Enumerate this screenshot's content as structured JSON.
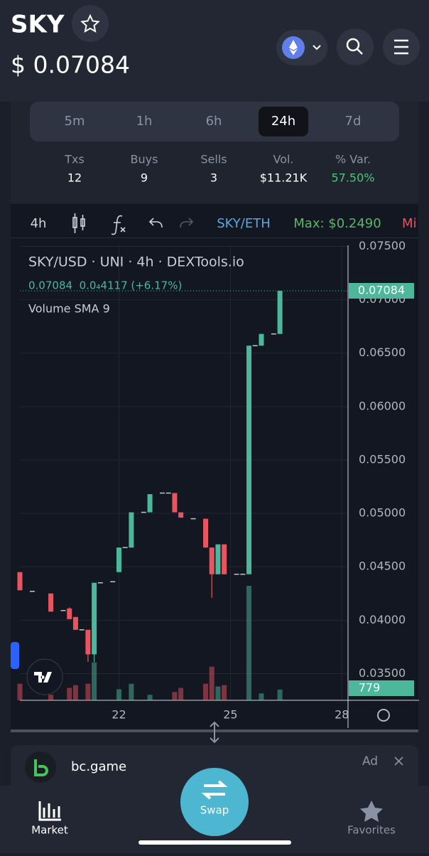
{
  "header": {
    "title": "SKY",
    "price": "$ 0.07084"
  },
  "timeframes": {
    "options": [
      "5m",
      "1h",
      "6h",
      "24h",
      "7d"
    ],
    "active": "24h"
  },
  "stats": [
    {
      "label": "Txs",
      "value": 12
    },
    {
      "label": "Buys",
      "value": 9
    },
    {
      "label": "Sells",
      "value": 3
    },
    {
      "label": "Vol.",
      "value": "$11.21K"
    },
    {
      "label": "% Var.",
      "value": "57.50%"
    }
  ],
  "toolbar": {
    "interval": "4h",
    "pair": "SKY/ETH",
    "max": "Max: $0.2490",
    "min": "Mi"
  },
  "chart_data": {
    "type": "candlestick",
    "title": "SKY/USD · UNI · 4h · DEXTools.io",
    "summary": "0.07084  0.0₄4117 (+6.17%)",
    "indicator": "Volume SMA 9",
    "x": [
      0,
      2,
      5,
      7,
      8,
      9,
      10,
      11,
      12,
      13,
      15,
      16,
      17,
      18,
      20,
      21,
      23,
      24,
      25,
      26,
      28,
      30,
      31,
      32,
      33,
      35,
      36,
      37,
      38,
      39,
      41,
      42
    ],
    "open": [
      0.0445,
      0.0427,
      0.0425,
      0.0409,
      0.0411,
      0.0403,
      0.0391,
      0.0391,
      0.0368,
      0.0435,
      0.0436,
      0.0445,
      0.0468,
      0.0468,
      0.0501,
      0.0501,
      0.0519,
      0.0519,
      0.0519,
      0.0501,
      0.0495,
      0.0495,
      0.0468,
      0.0443,
      0.0471,
      0.0443,
      0.0443,
      0.0443,
      0.0657,
      0.0657,
      0.0668,
      0.0668
    ],
    "high": [
      0.0445,
      0.0427,
      0.0425,
      0.0409,
      0.0412,
      0.0403,
      0.0391,
      0.0391,
      0.0435,
      0.0435,
      0.0436,
      0.0468,
      0.0468,
      0.0501,
      0.0501,
      0.0518,
      0.0519,
      0.0519,
      0.0519,
      0.0501,
      0.0495,
      0.0495,
      0.0468,
      0.0471,
      0.0471,
      0.0443,
      0.0443,
      0.0657,
      0.0657,
      0.0668,
      0.0668,
      0.07084
    ],
    "low": [
      0.0428,
      0.0427,
      0.0408,
      0.0409,
      0.0401,
      0.0391,
      0.0391,
      0.0361,
      0.0361,
      0.0435,
      0.0436,
      0.0445,
      0.0468,
      0.0468,
      0.0501,
      0.0501,
      0.0519,
      0.0519,
      0.0501,
      0.0496,
      0.0495,
      0.0468,
      0.0421,
      0.0443,
      0.0443,
      0.0443,
      0.0443,
      0.0443,
      0.0657,
      0.0657,
      0.0668,
      0.0668
    ],
    "close": [
      0.0428,
      0.0427,
      0.0408,
      0.0409,
      0.0401,
      0.0391,
      0.0391,
      0.0368,
      0.0435,
      0.0435,
      0.0436,
      0.0468,
      0.0468,
      0.0501,
      0.0501,
      0.0518,
      0.0519,
      0.0519,
      0.0501,
      0.0496,
      0.0495,
      0.0468,
      0.0443,
      0.0471,
      0.0443,
      0.0443,
      0.0443,
      0.0657,
      0.0657,
      0.0668,
      0.0668,
      0.07084
    ],
    "volume": [
      1200,
      0,
      400,
      0,
      900,
      1100,
      0,
      1200,
      2750,
      0,
      0,
      800,
      0,
      1200,
      0,
      400,
      0,
      0,
      600,
      900,
      0,
      1200,
      2440,
      1000,
      1100,
      0,
      0,
      8300,
      0,
      500,
      0,
      779
    ],
    "up_color": "#4cb79b",
    "down_color": "#e8555f",
    "xlim": [
      0,
      53
    ],
    "xticks": [
      {
        "value": 16,
        "label": "22"
      },
      {
        "value": 34,
        "label": "25"
      },
      {
        "value": 52,
        "label": "28"
      }
    ],
    "ylim": [
      0.0325,
      0.0751
    ],
    "yticks": [
      {
        "value": 0.035,
        "label": "0.03500"
      },
      {
        "value": 0.04,
        "label": "0.04000"
      },
      {
        "value": 0.045,
        "label": "0.04500"
      },
      {
        "value": 0.05,
        "label": "0.05000"
      },
      {
        "value": 0.055,
        "label": "0.05500"
      },
      {
        "value": 0.06,
        "label": "0.06000"
      },
      {
        "value": 0.065,
        "label": "0.06500"
      },
      {
        "value": 0.07,
        "label": "0.07000"
      },
      {
        "value": 0.075,
        "label": "0.07500"
      }
    ],
    "volume_lim": [
      0,
      33000
    ],
    "grid": true
  },
  "ad": {
    "name": "bc.game",
    "label": "Ad"
  },
  "nav": {
    "market": "Market",
    "swap": "Swap",
    "favorites": "Favorites"
  }
}
